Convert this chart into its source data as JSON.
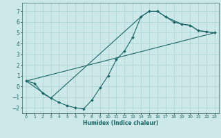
{
  "xlabel": "Humidex (Indice chaleur)",
  "xlim": [
    -0.5,
    23.5
  ],
  "ylim": [
    -2.5,
    7.8
  ],
  "xticks": [
    0,
    1,
    2,
    3,
    4,
    5,
    6,
    7,
    8,
    9,
    10,
    11,
    12,
    13,
    14,
    15,
    16,
    17,
    18,
    19,
    20,
    21,
    22,
    23
  ],
  "yticks": [
    -2,
    -1,
    0,
    1,
    2,
    3,
    4,
    5,
    6,
    7
  ],
  "background_color": "#cce8e8",
  "grid_color": "#aad0d0",
  "line_color": "#1a6666",
  "line1_x": [
    0,
    1,
    2,
    3,
    4,
    5,
    6,
    7,
    8,
    9,
    10,
    11,
    12,
    13,
    14,
    15,
    16,
    17,
    18,
    19,
    20,
    21,
    22,
    23
  ],
  "line1_y": [
    0.5,
    0.3,
    -0.65,
    -1.1,
    -1.5,
    -1.8,
    -2.0,
    -2.1,
    -1.3,
    -0.15,
    1.0,
    2.5,
    3.3,
    4.6,
    6.5,
    7.0,
    7.0,
    6.5,
    6.0,
    5.8,
    5.7,
    5.2,
    5.1,
    5.0
  ],
  "line2_x": [
    0,
    3,
    14,
    15,
    16,
    17,
    19,
    20,
    21,
    22,
    23
  ],
  "line2_y": [
    0.5,
    -1.1,
    6.5,
    7.0,
    7.0,
    6.5,
    5.8,
    5.7,
    5.2,
    5.1,
    5.0
  ],
  "line3_x": [
    0,
    23
  ],
  "line3_y": [
    0.5,
    5.0
  ]
}
